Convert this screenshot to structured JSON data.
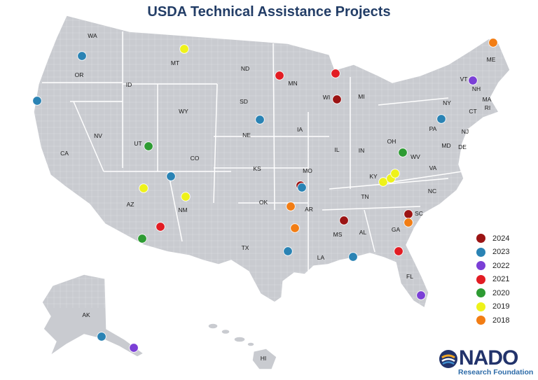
{
  "title": "USDA Technical Assistance Projects",
  "legend": [
    {
      "year": "2024",
      "color": "#9b1414"
    },
    {
      "year": "2023",
      "color": "#2a83b4"
    },
    {
      "year": "2022",
      "color": "#7b3fd6"
    },
    {
      "year": "2021",
      "color": "#e21c23"
    },
    {
      "year": "2020",
      "color": "#2e9b33"
    },
    {
      "year": "2019",
      "color": "#eef21a"
    },
    {
      "year": "2018",
      "color": "#f27d14"
    }
  ],
  "states": [
    "WA",
    "OR",
    "CA",
    "ID",
    "NV",
    "MT",
    "WY",
    "UT",
    "AZ",
    "CO",
    "NM",
    "ND",
    "SD",
    "NE",
    "KS",
    "OK",
    "TX",
    "MN",
    "IA",
    "MO",
    "AR",
    "LA",
    "WI",
    "IL",
    "MI",
    "IN",
    "KY",
    "TN",
    "MS",
    "AL",
    "OH",
    "GA",
    "FL",
    "SC",
    "NC",
    "VA",
    "WV",
    "PA",
    "NY",
    "MD",
    "DE",
    "NJ",
    "CT",
    "RI",
    "MA",
    "VT",
    "NH",
    "ME",
    "AK",
    "HI"
  ],
  "projects": [
    {
      "state": "WA/OR",
      "year": "2023"
    },
    {
      "state": "CA",
      "year": "2023"
    },
    {
      "state": "MT",
      "year": "2019"
    },
    {
      "state": "UT",
      "year": "2020"
    },
    {
      "state": "CO",
      "year": "2023"
    },
    {
      "state": "AZ",
      "year": "2019"
    },
    {
      "state": "NM",
      "year": "2019"
    },
    {
      "state": "NM",
      "year": "2021"
    },
    {
      "state": "AZ",
      "year": "2020"
    },
    {
      "state": "MN",
      "year": "2021"
    },
    {
      "state": "WI",
      "year": "2021"
    },
    {
      "state": "WI",
      "year": "2024"
    },
    {
      "state": "SD",
      "year": "2023"
    },
    {
      "state": "MO",
      "year": "2024"
    },
    {
      "state": "MO",
      "year": "2023"
    },
    {
      "state": "OK",
      "year": "2018"
    },
    {
      "state": "AR",
      "year": "2018"
    },
    {
      "state": "TX",
      "year": "2023"
    },
    {
      "state": "MS",
      "year": "2024"
    },
    {
      "state": "LA/MS",
      "year": "2023"
    },
    {
      "state": "GA",
      "year": "2021"
    },
    {
      "state": "SC",
      "year": "2024"
    },
    {
      "state": "SC",
      "year": "2018"
    },
    {
      "state": "FL",
      "year": "2022"
    },
    {
      "state": "KY",
      "year": "2019"
    },
    {
      "state": "KY",
      "year": "2019"
    },
    {
      "state": "KY",
      "year": "2019"
    },
    {
      "state": "WV",
      "year": "2020"
    },
    {
      "state": "PA",
      "year": "2023"
    },
    {
      "state": "VT",
      "year": "2022"
    },
    {
      "state": "ME",
      "year": "2018"
    },
    {
      "state": "AK",
      "year": "2023"
    },
    {
      "state": "AK",
      "year": "2022"
    }
  ],
  "logo": {
    "word": "NADO",
    "sub": "Research Foundation"
  }
}
